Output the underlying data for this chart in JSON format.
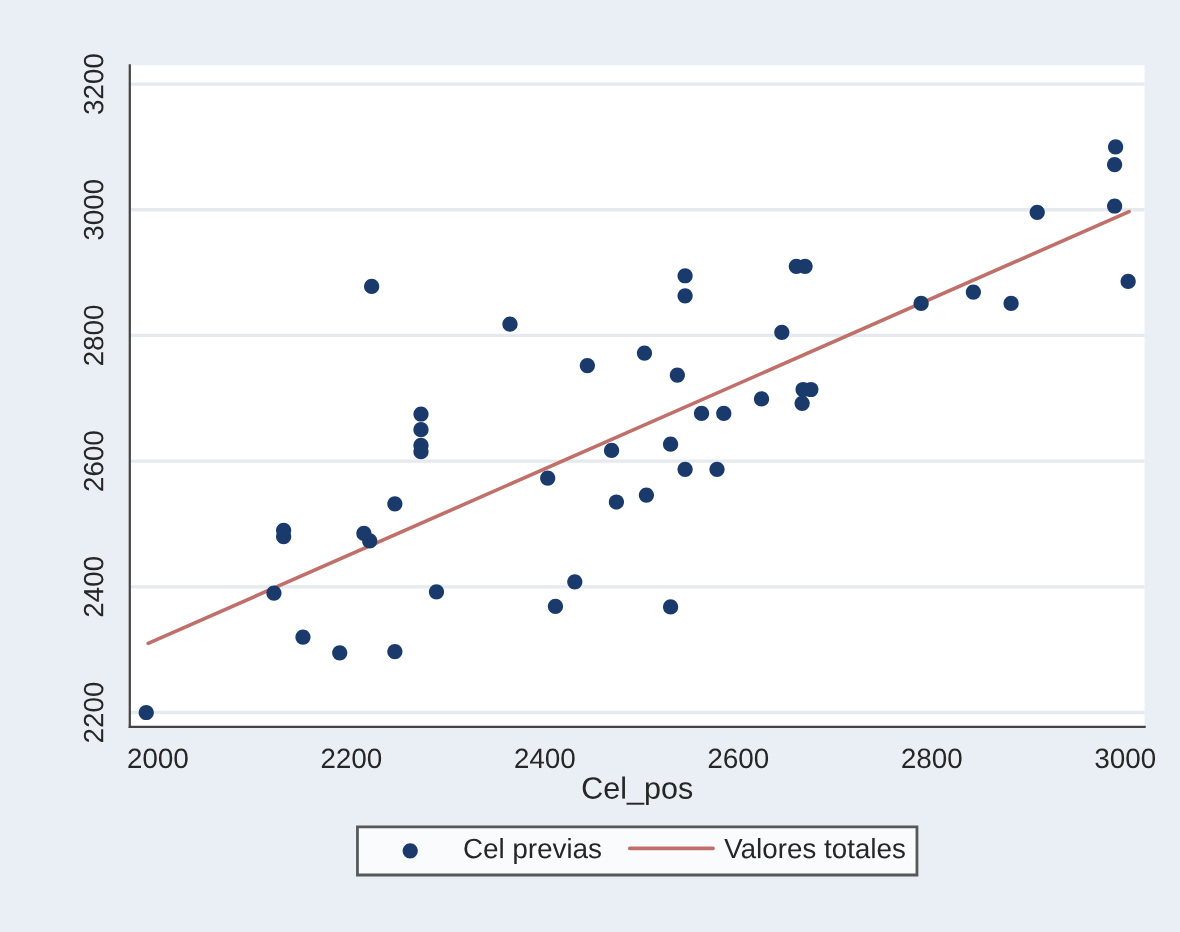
{
  "chart_data": {
    "type": "scatter",
    "xlabel": "Cel_pos",
    "xlim": [
      1971,
      3020
    ],
    "xticks": [
      2000,
      2200,
      2400,
      2600,
      2800,
      3000
    ],
    "ylim": [
      2177,
      3230
    ],
    "yticks": [
      2200,
      2400,
      2600,
      2800,
      3000,
      3200
    ],
    "grid": "y",
    "legend": "bottom",
    "series": [
      {
        "name": "Cel previas",
        "marker": "circle",
        "color": "#1a3a6b",
        "x": [
          1988,
          2120,
          2130,
          2130,
          2150,
          2188,
          2213,
          2219,
          2221,
          2245,
          2245,
          2272,
          2272,
          2272,
          2272,
          2288,
          2364,
          2403,
          2411,
          2431,
          2444,
          2469,
          2474,
          2503,
          2505,
          2530,
          2530,
          2537,
          2545,
          2545,
          2545,
          2562,
          2578,
          2585,
          2624,
          2645,
          2660,
          2669,
          2666,
          2667,
          2675,
          2789,
          2843,
          2882,
          2909,
          2990,
          2989,
          2989,
          3003
        ],
        "values": [
          2200,
          2390,
          2480,
          2490,
          2320,
          2295,
          2485,
          2473,
          2878,
          2532,
          2297,
          2675,
          2650,
          2625,
          2615,
          2392,
          2818,
          2573,
          2369,
          2408,
          2752,
          2617,
          2535,
          2772,
          2546,
          2627,
          2368,
          2737,
          2895,
          2863,
          2587,
          2676,
          2587,
          2676,
          2699,
          2805,
          2910,
          2910,
          2692,
          2714,
          2714,
          2851,
          2869,
          2851,
          2996,
          3100,
          3072,
          3006,
          2886
        ]
      },
      {
        "name": "Valores totales",
        "type": "line",
        "color": "#c0706a",
        "line_style": "solid",
        "x": [
          1990,
          3004
        ],
        "values": [
          2310,
          2997
        ]
      }
    ]
  }
}
